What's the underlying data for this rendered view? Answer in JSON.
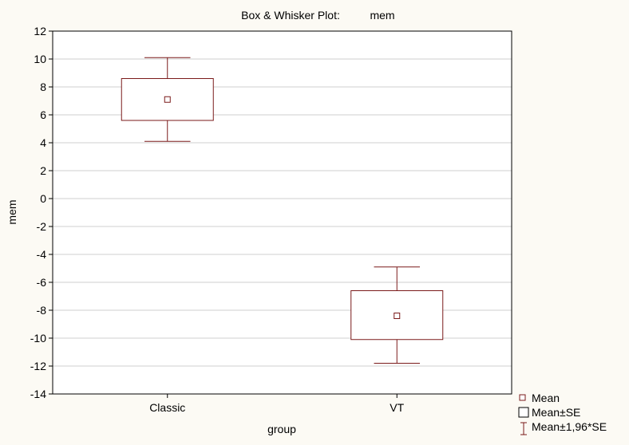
{
  "chart_data": {
    "type": "box",
    "title_prefix": "Box & Whisker Plot:",
    "title_variable": "mem",
    "xlabel": "group",
    "ylabel": "mem",
    "ylim": [
      -14,
      12
    ],
    "yticks": [
      12,
      10,
      8,
      6,
      4,
      2,
      0,
      -2,
      -4,
      -6,
      -8,
      -10,
      -12,
      -14
    ],
    "ytick_labels": [
      "12",
      "10",
      "8",
      "6",
      "4",
      "2",
      "0",
      "-2",
      "-4",
      "-6",
      "-8",
      "-10",
      "-12",
      "-14"
    ],
    "categories": [
      "Classic",
      "VT"
    ],
    "grid": true,
    "legend_position": "bottom-right",
    "series": [
      {
        "category": "Classic",
        "mean": 7.1,
        "box_low": 5.6,
        "box_high": 8.6,
        "whisker_low": 4.1,
        "whisker_high": 10.1
      },
      {
        "category": "VT",
        "mean": -8.4,
        "box_low": -10.1,
        "box_high": -6.6,
        "whisker_low": -11.8,
        "whisker_high": -4.9
      }
    ],
    "legend": [
      "Mean",
      "Mean±SE",
      "Mean±1,96*SE"
    ],
    "colors": {
      "box": "#7a1a1a",
      "background": "#fcfaf4",
      "plot_background": "#ffffff",
      "grid": "#cfcfcf",
      "frame": "#000000"
    }
  }
}
